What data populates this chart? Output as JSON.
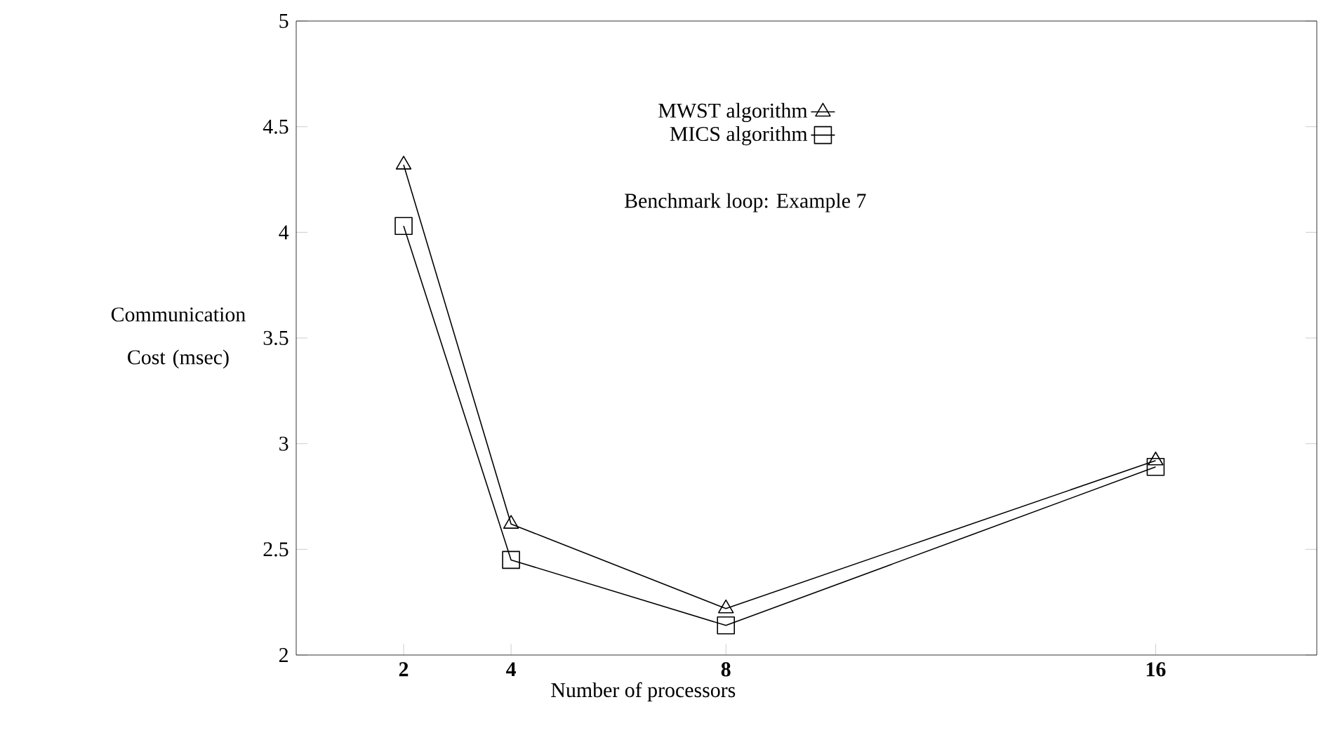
{
  "chart_data": {
    "type": "line",
    "xlabel": "Number of processors",
    "ylabel": "Communication Cost (msec)",
    "x": [
      2,
      4,
      8,
      16
    ],
    "series": [
      {
        "name": "MWST algorithm",
        "color": "#000000",
        "marker": "triangle",
        "values": [
          4.32,
          2.62,
          2.22,
          2.92
        ]
      },
      {
        "name": "MICS algorithm",
        "color": "#000000",
        "marker": "square",
        "values": [
          4.03,
          2.45,
          2.14,
          2.89
        ]
      }
    ],
    "annotations": [
      "Benchmark loop: Example 7"
    ],
    "xlim": [
      0,
      19
    ],
    "ylim": [
      2,
      5
    ],
    "xticks": [
      2,
      4,
      8,
      16
    ],
    "yticks": [
      2,
      2.5,
      3,
      3.5,
      4,
      4.5,
      5
    ],
    "legend": "top",
    "grid": false,
    "line_style": "solid"
  }
}
